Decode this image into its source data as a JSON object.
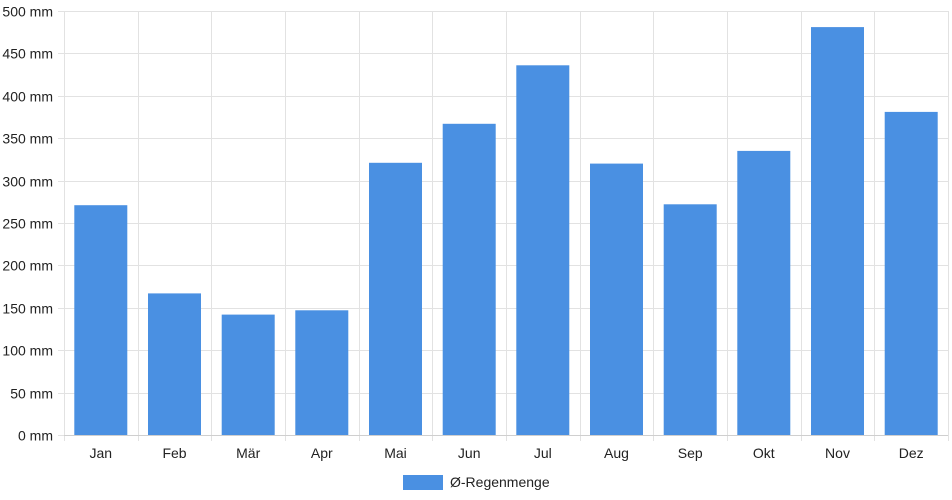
{
  "chart_data": {
    "type": "bar",
    "categories": [
      "Jan",
      "Feb",
      "Mär",
      "Apr",
      "Mai",
      "Jun",
      "Jul",
      "Aug",
      "Sep",
      "Okt",
      "Nov",
      "Dez"
    ],
    "series": [
      {
        "name": "Ø-Regenmenge",
        "values": [
          271,
          167,
          142,
          147,
          321,
          367,
          436,
          320,
          272,
          335,
          481,
          381
        ],
        "color": "#4a90e2"
      }
    ],
    "y_tick_labels": [
      "0 mm",
      "50 mm",
      "100 mm",
      "150 mm",
      "200 mm",
      "250 mm",
      "300 mm",
      "350 mm",
      "400 mm",
      "450 mm",
      "500 mm"
    ],
    "ylim": [
      0,
      500
    ],
    "y_tick_step": 50,
    "grid": true,
    "legend_position": "bottom-center"
  }
}
